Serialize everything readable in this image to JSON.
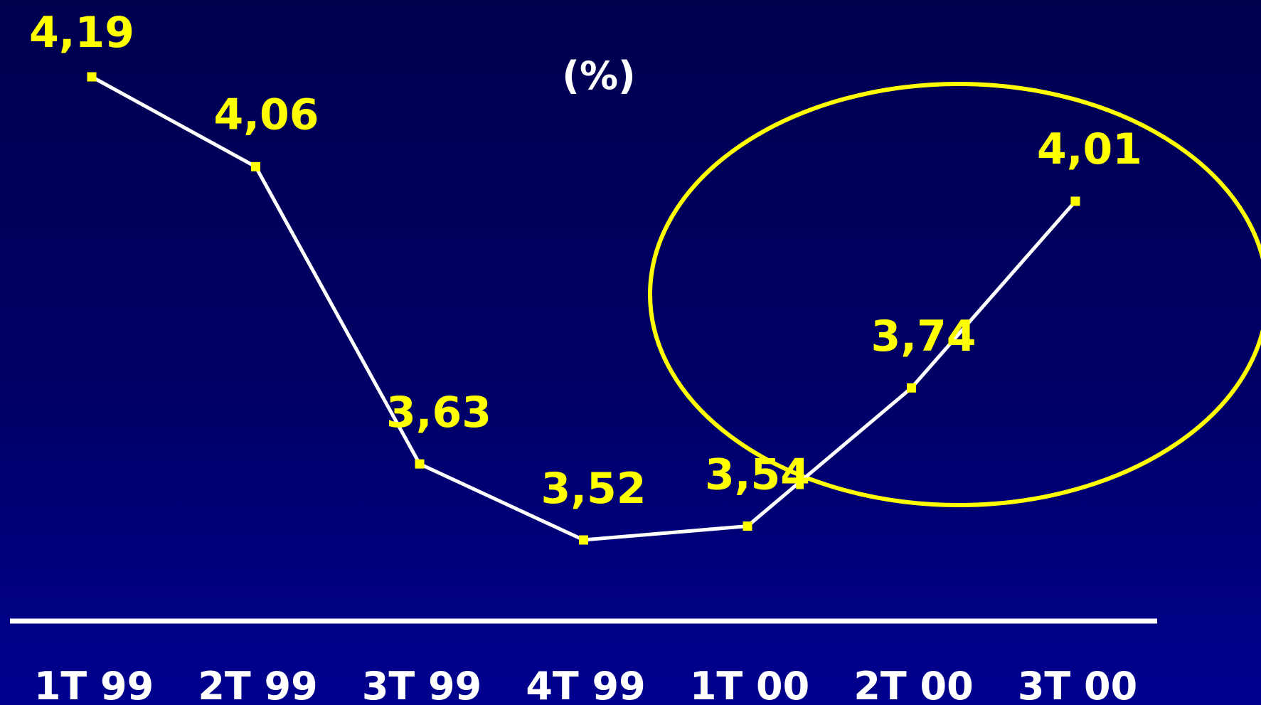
{
  "chart_data": {
    "type": "line",
    "unit_label": "(%)",
    "categories": [
      "1T 99",
      "2T 99",
      "3T 99",
      "4T 99",
      "1T 00",
      "2T 00",
      "3T 00"
    ],
    "values": [
      4.19,
      4.06,
      3.63,
      3.52,
      3.54,
      3.74,
      4.01
    ],
    "value_labels": [
      "4,19",
      "4,06",
      "3,63",
      "3,52",
      "3,54",
      "3,74",
      "4,01"
    ],
    "highlight": {
      "shape": "ellipse",
      "covers_categories": [
        "2T 00",
        "3T 00"
      ]
    },
    "colors": {
      "background": "#000066",
      "line": "#ffffff",
      "markers": "#ffff00",
      "value_labels": "#ffff00",
      "category_labels": "#ffffff",
      "highlight": "#ffff00"
    }
  }
}
